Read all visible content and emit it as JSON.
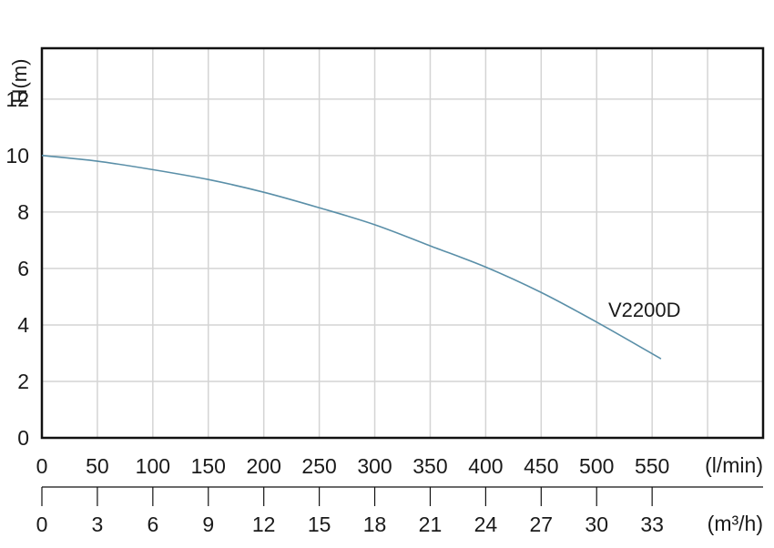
{
  "chart_data": {
    "type": "line",
    "ylabel": "H(m)",
    "ylim": [
      0,
      13.8
    ],
    "yticks": [
      0,
      2,
      4,
      6,
      8,
      10,
      12
    ],
    "x_unit_primary": "(l/min)",
    "x_ticks_primary": [
      0,
      50,
      100,
      150,
      200,
      250,
      300,
      350,
      400,
      450,
      500,
      550
    ],
    "x_unit_secondary": "(m³/h)",
    "x_ticks_secondary": [
      0,
      3,
      6,
      9,
      12,
      15,
      18,
      21,
      24,
      27,
      30,
      33
    ],
    "xlim": [
      0,
      650
    ],
    "grid": true,
    "series": [
      {
        "name": "V2200D",
        "color": "#5a8fa8",
        "x": [
          0,
          50,
          100,
          150,
          200,
          250,
          300,
          350,
          400,
          450,
          500,
          558
        ],
        "y": [
          10.0,
          9.8,
          9.5,
          9.15,
          8.7,
          8.15,
          7.55,
          6.8,
          6.05,
          5.15,
          4.1,
          2.8
        ]
      }
    ]
  }
}
